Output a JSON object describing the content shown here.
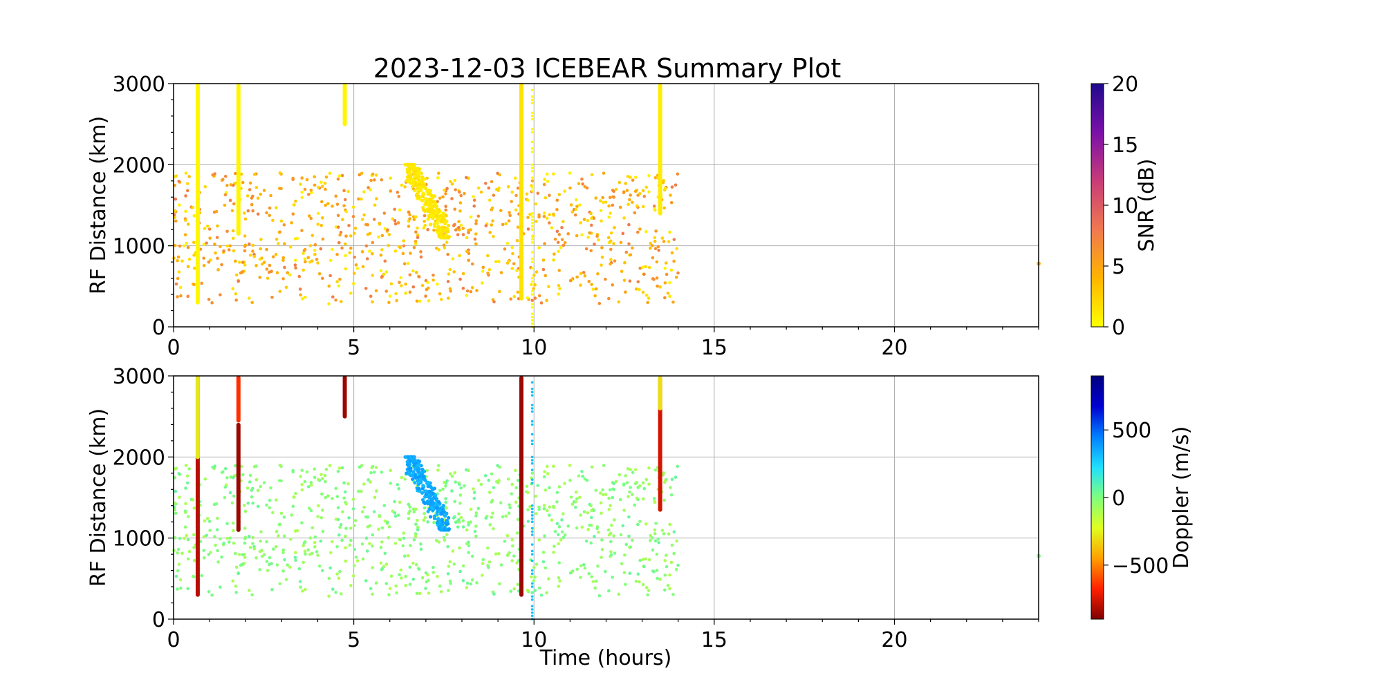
{
  "figure": {
    "title": "2023-12-03 ICEBEAR Summary Plot"
  },
  "chart_data": [
    {
      "type": "scatter",
      "panel": "top",
      "ylabel": "RF Distance (km)",
      "xlabel": "",
      "xlim": [
        0,
        24
      ],
      "ylim": [
        0,
        3000
      ],
      "xticks": [
        "0",
        "5",
        "10",
        "15",
        "20"
      ],
      "yticks": [
        "0",
        "1000",
        "2000",
        "3000"
      ],
      "grid": true,
      "color_by": "SNR",
      "colorbar": {
        "label": "SNR (dB)",
        "range": [
          0,
          20
        ],
        "ticks": [
          "0",
          "5",
          "10",
          "15",
          "20"
        ],
        "colormap": [
          "#ffff00",
          "#ffb400",
          "#f07850",
          "#c83c78",
          "#7a10a8",
          "#1e0a8c"
        ]
      },
      "streaks": [
        {
          "x": 0.67,
          "y_from": 300,
          "y_to": 2980,
          "value": 0.5
        },
        {
          "x": 1.8,
          "y_from": 1150,
          "y_to": 2980,
          "value": 0.5
        },
        {
          "x": 4.75,
          "y_from": 2500,
          "y_to": 2980,
          "value": 0.5
        },
        {
          "x": 9.65,
          "y_from": 350,
          "y_to": 2980,
          "value": 1.5
        },
        {
          "x": 9.95,
          "y_from": 0,
          "y_to": 2980,
          "value": 0.3
        },
        {
          "x": 13.5,
          "y_from": 1400,
          "y_to": 2980,
          "value": 1.0
        }
      ],
      "cluster": {
        "x_range": [
          6.5,
          7.6
        ],
        "y_range": [
          1100,
          2000
        ],
        "value": 1.2
      },
      "scatter": {
        "x_range": [
          0,
          14
        ],
        "y_range": [
          280,
          1900
        ],
        "count": 900,
        "value_range": [
          0.5,
          8
        ]
      },
      "extra_points": [
        {
          "x": 24.0,
          "y": 780,
          "value": 4
        }
      ]
    },
    {
      "type": "scatter",
      "panel": "bottom",
      "ylabel": "RF Distance (km)",
      "xlabel": "Time (hours)",
      "xlim": [
        0,
        24
      ],
      "ylim": [
        0,
        3000
      ],
      "xticks": [
        "0",
        "5",
        "10",
        "15",
        "20"
      ],
      "yticks": [
        "0",
        "1000",
        "2000",
        "3000"
      ],
      "grid": true,
      "color_by": "Doppler",
      "colorbar": {
        "label": "Doppler (m/s)",
        "range": [
          -900,
          900
        ],
        "ticks": [
          "−500",
          "0",
          "500"
        ],
        "tick_values": [
          -500,
          0,
          500
        ],
        "colormap": [
          "#7f0000",
          "#ff2000",
          "#ff9f00",
          "#dfff20",
          "#7fff7f",
          "#20dfff",
          "#0080ff",
          "#0000d0",
          "#00007f"
        ]
      },
      "streaks": [
        {
          "x": 0.67,
          "y_from": 300,
          "y_to": 2980,
          "value": -800
        },
        {
          "x": 0.67,
          "y_from": 2000,
          "y_to": 2980,
          "value": -280
        },
        {
          "x": 1.8,
          "y_from": 2450,
          "y_to": 2980,
          "value": -650
        },
        {
          "x": 1.8,
          "y_from": 1100,
          "y_to": 2400,
          "value": -850
        },
        {
          "x": 4.75,
          "y_from": 2500,
          "y_to": 2980,
          "value": -850
        },
        {
          "x": 9.65,
          "y_from": 300,
          "y_to": 2980,
          "value": -850
        },
        {
          "x": 9.95,
          "y_from": 0,
          "y_to": 2980,
          "value": 300
        },
        {
          "x": 13.5,
          "y_from": 1350,
          "y_to": 2980,
          "value": -750
        },
        {
          "x": 13.5,
          "y_from": 2600,
          "y_to": 2980,
          "value": -300
        }
      ],
      "cluster": {
        "x_range": [
          6.5,
          7.6
        ],
        "y_range": [
          1100,
          2000
        ],
        "value": 350
      },
      "scatter": {
        "x_range": [
          0,
          14
        ],
        "y_range": [
          280,
          1900
        ],
        "count": 900,
        "value_range": [
          -120,
          60
        ]
      },
      "extra_points": [
        {
          "x": 24.0,
          "y": 780,
          "value": 0
        }
      ]
    }
  ]
}
